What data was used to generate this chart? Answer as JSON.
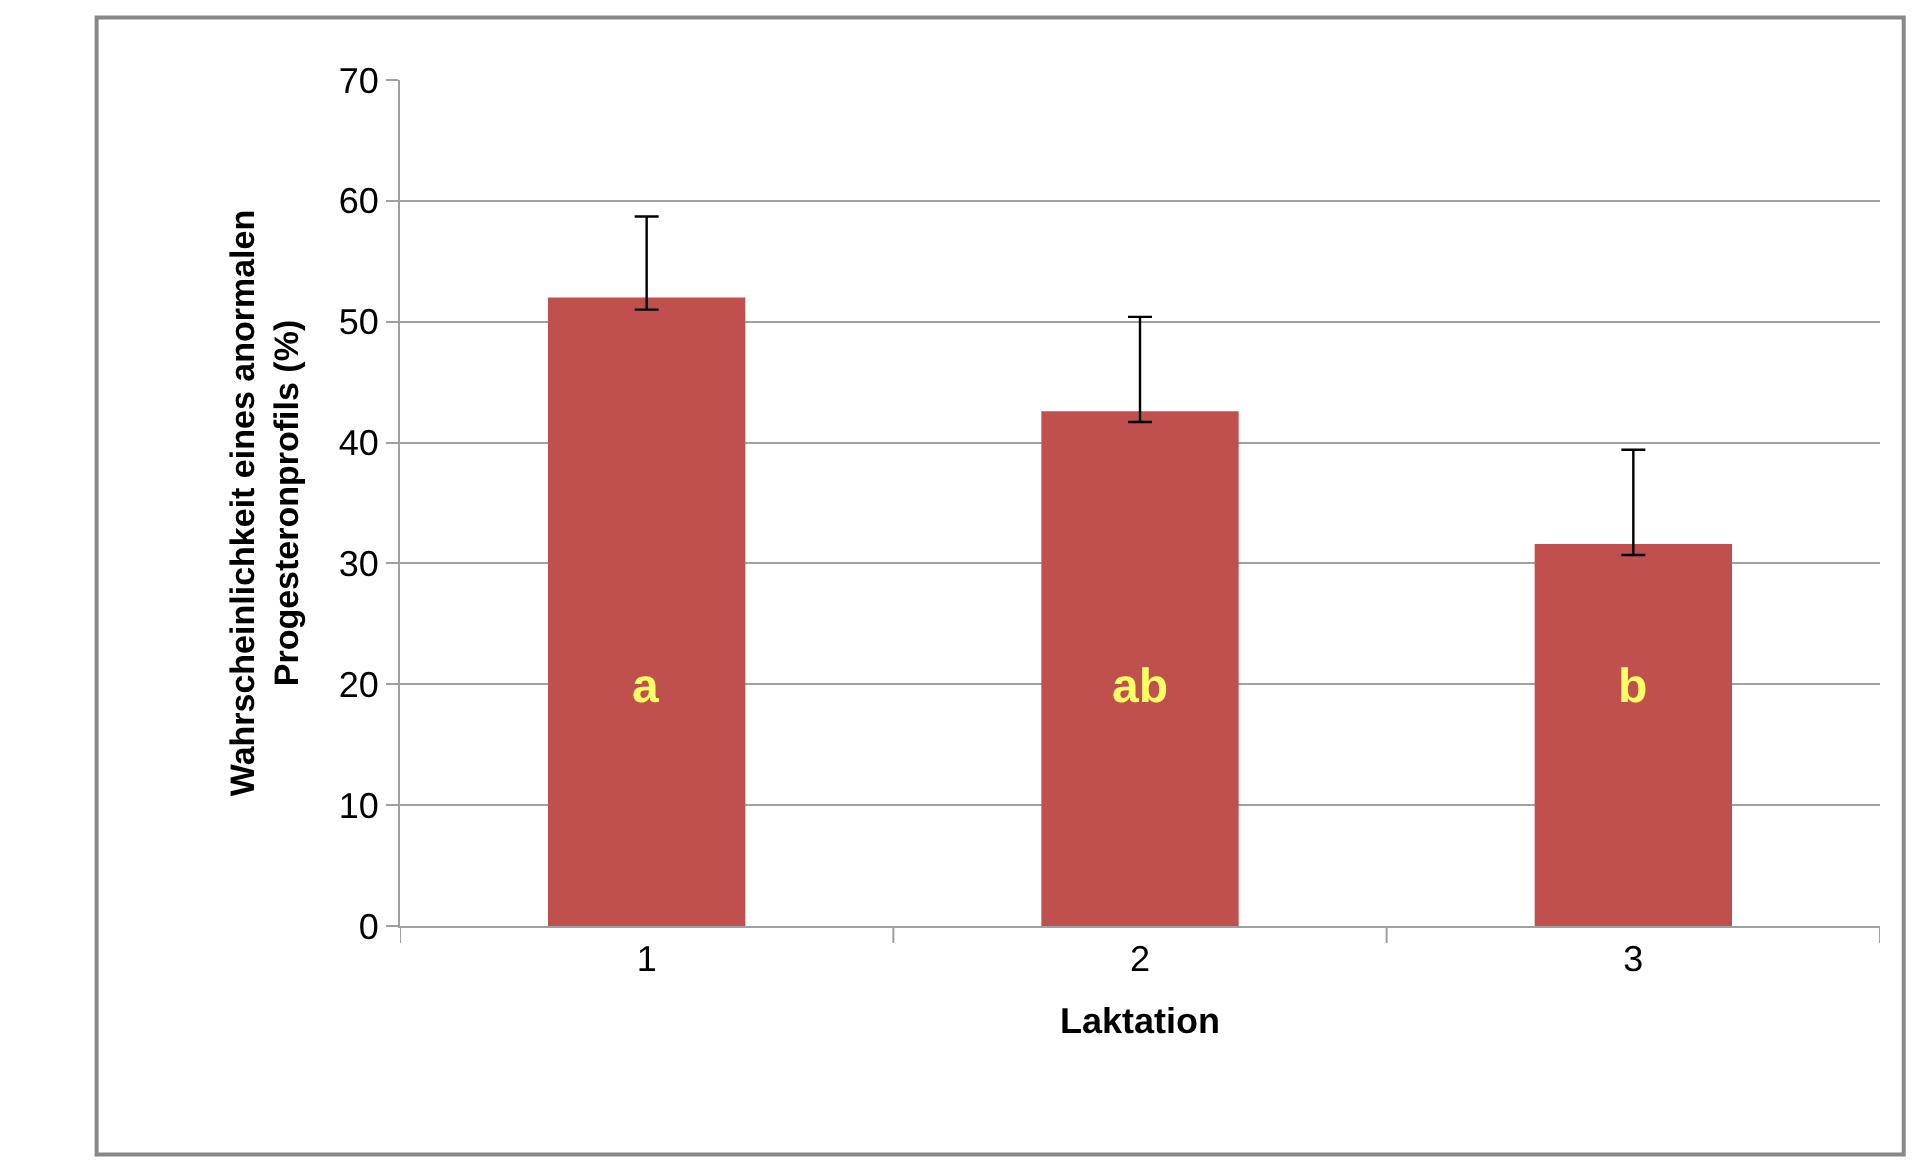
{
  "chart_data": {
    "type": "bar",
    "xlabel": "Laktation",
    "ylabel": "Wahrscheinlichkeit eines anormalen\nProgesteronprofils (%)",
    "categories": [
      "1",
      "2",
      "3"
    ],
    "values": [
      52.0,
      42.6,
      31.6
    ],
    "errors": [
      [
        51.0,
        58.7
      ],
      [
        41.7,
        50.4
      ],
      [
        30.7,
        39.4
      ]
    ],
    "color": "#c0504d",
    "ylim": [
      0,
      70
    ],
    "yticks": [
      0,
      10,
      20,
      30,
      40,
      50,
      60,
      70
    ],
    "grid": "y",
    "legend": false,
    "annotations": [
      "a",
      "ab",
      "b"
    ]
  }
}
